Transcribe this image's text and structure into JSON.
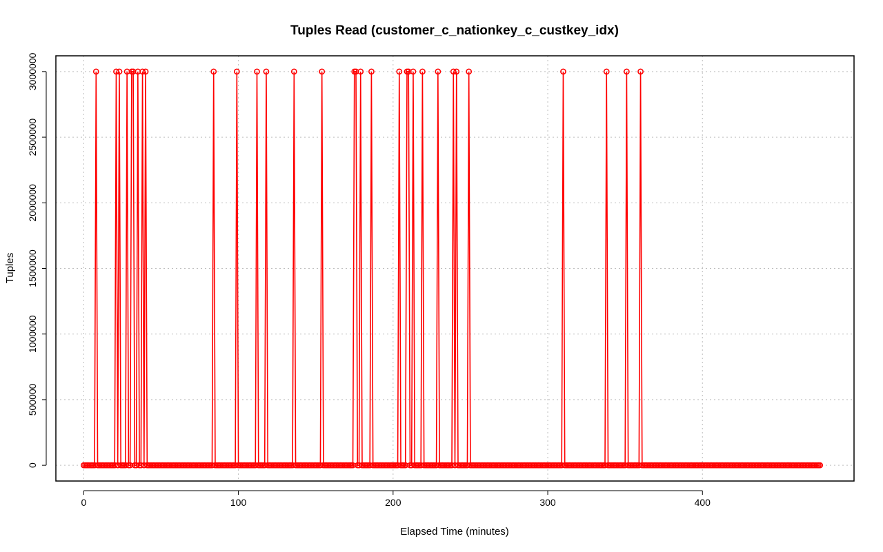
{
  "chart_data": {
    "type": "line",
    "title": "Tuples Read (customer_c_nationkey_c_custkey_idx)",
    "xlabel": "Elapsed Time (minutes)",
    "ylabel": "Tuples",
    "xlim": [
      -18,
      498
    ],
    "ylim": [
      -120000,
      3120000
    ],
    "x_ticks": [
      0,
      100,
      200,
      300,
      400
    ],
    "x_tick_labels": [
      "0",
      "100",
      "200",
      "300",
      "400"
    ],
    "y_ticks": [
      0,
      500000,
      1000000,
      1500000,
      2000000,
      2500000,
      3000000
    ],
    "y_tick_labels": [
      "0",
      "500000",
      "1000000",
      "1500000",
      "2000000",
      "2500000",
      "3000000"
    ],
    "grid": true,
    "color": "#ff0000",
    "series": [
      {
        "x_start": 0,
        "x_end": 476,
        "x_step": 1,
        "baseline": 0,
        "spike_value": 3000000,
        "spike_x": [
          8,
          21,
          23,
          28,
          31,
          32,
          35,
          38,
          40,
          84,
          99,
          112,
          118,
          136,
          154,
          175,
          176,
          179,
          186,
          204,
          209,
          210,
          213,
          219,
          229,
          239,
          241,
          249,
          310,
          338,
          351,
          360
        ]
      }
    ]
  }
}
